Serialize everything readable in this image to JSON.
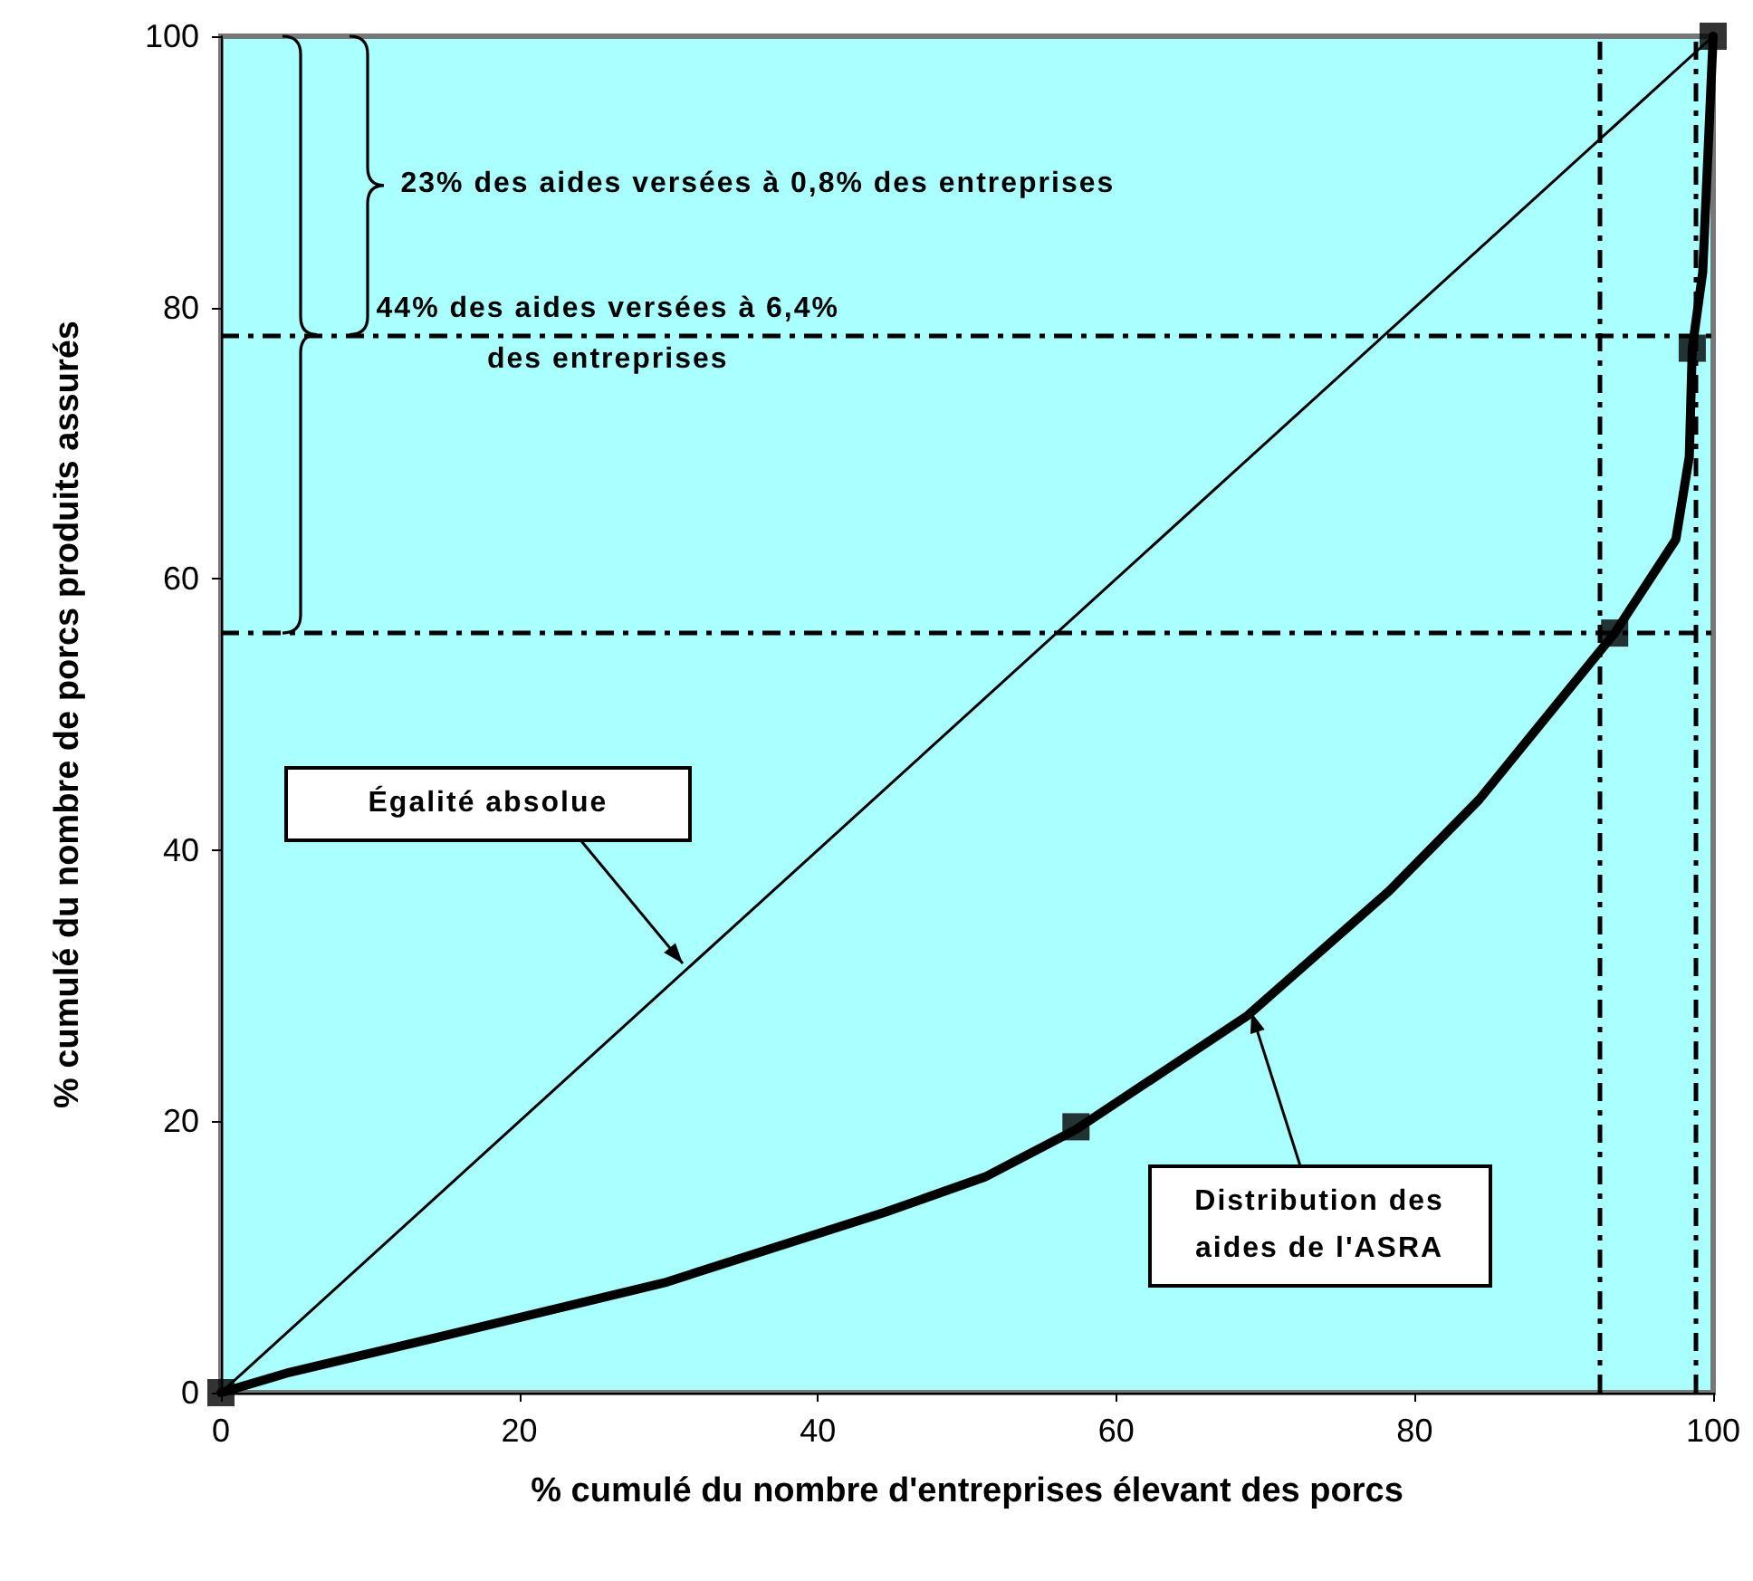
{
  "chart_data": {
    "type": "line",
    "xlabel": "% cumulé du nombre d'entreprises élevant des porcs",
    "ylabel": "% cumulé du nombre de porcs produits assurés",
    "xlim": [
      0,
      100
    ],
    "ylim": [
      0,
      100
    ],
    "xticks": [
      0,
      20,
      40,
      60,
      80,
      100
    ],
    "yticks": [
      0,
      20,
      40,
      60,
      80,
      100
    ],
    "grid": false,
    "series": [
      {
        "marker": "none",
        "color": "#000000",
        "x": [
          0,
          100
        ],
        "values": [
          0,
          100
        ]
      },
      {
        "marker": "none",
        "color": "#000000",
        "x": [
          0,
          4.6,
          14.2,
          29.7,
          44.5,
          51.2,
          57.3,
          68.8,
          78.3,
          84.3,
          93.4,
          97.5,
          98.4,
          98.6,
          99.3,
          100
        ],
        "values": [
          0,
          1.5,
          4.0,
          8.1,
          13.3,
          15.9,
          19.4,
          27.8,
          37.0,
          43.7,
          56,
          62.9,
          69,
          77,
          82.6,
          100
        ]
      },
      {
        "type": "scatter",
        "marker": "square",
        "color": "#000000",
        "x": [
          0,
          57.3,
          93.4,
          98.6,
          100
        ],
        "values": [
          0,
          19.6,
          56,
          77,
          100
        ]
      }
    ],
    "ref_lines": [
      {
        "axis": "y",
        "value": 78,
        "color": "#000000"
      },
      {
        "axis": "y",
        "value": 56,
        "color": "#000000"
      },
      {
        "axis": "x",
        "value": 92.4,
        "color": "#000000"
      },
      {
        "axis": "x",
        "value": 98.8,
        "color": "#000000"
      }
    ],
    "annotations": [
      "23% des aides versées à 0,8% des entreprises",
      "44% des aides versées à 6,4% des entreprises",
      {
        "text": "Égalité absolue",
        "x": 31,
        "y": 31.6
      },
      {
        "text": "Distribution des aides de l'ASRA",
        "x": 69,
        "y": 28
      }
    ]
  }
}
